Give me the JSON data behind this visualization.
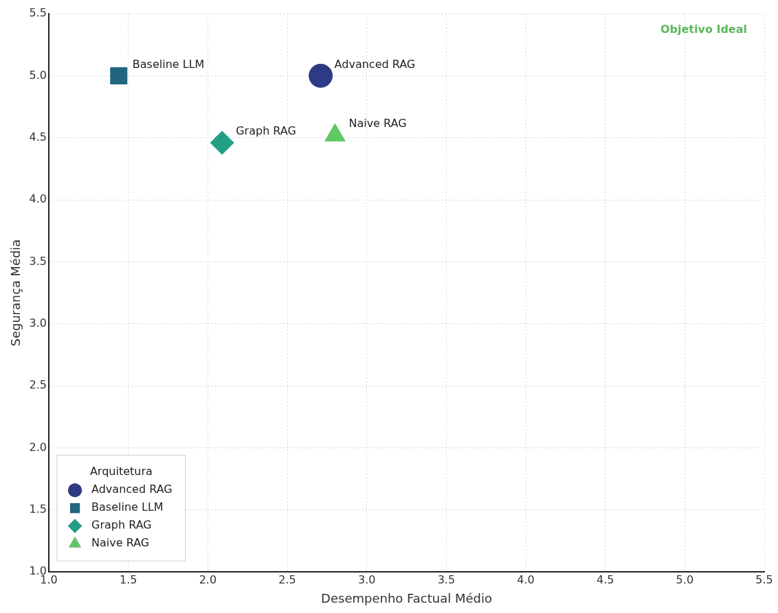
{
  "chart_data": {
    "type": "scatter",
    "xlabel": "Desempenho Factual Médio",
    "ylabel": "Segurança Média",
    "legend_title": "Arquitetura",
    "legend": "bottom left",
    "grid": true,
    "line_style": "dotted",
    "xlim": [
      1.0,
      5.5
    ],
    "ylim": [
      1.0,
      5.5
    ],
    "xticks": [
      {
        "value": 1,
        "label": "1.0"
      },
      {
        "value": 1.5,
        "label": "1.5"
      },
      {
        "value": 2,
        "label": "2.0"
      },
      {
        "value": 2.5,
        "label": "2.5"
      },
      {
        "value": 3,
        "label": "3.0"
      },
      {
        "value": 3.5,
        "label": "3.5"
      },
      {
        "value": 4,
        "label": "4.0"
      },
      {
        "value": 4.5,
        "label": "4.5"
      },
      {
        "value": 5,
        "label": "5.0"
      },
      {
        "value": 5.5,
        "label": "5.5"
      }
    ],
    "yticks": [
      {
        "value": 1,
        "label": "1.0"
      },
      {
        "value": 1.5,
        "label": "1.5"
      },
      {
        "value": 2,
        "label": "2.0"
      },
      {
        "value": 2.5,
        "label": "2.5"
      },
      {
        "value": 3,
        "label": "3.0"
      },
      {
        "value": 3.5,
        "label": "3.5"
      },
      {
        "value": 4,
        "label": "4.0"
      },
      {
        "value": 4.5,
        "label": "4.5"
      },
      {
        "value": 5,
        "label": "5.0"
      },
      {
        "value": 5.5,
        "label": "5.5"
      }
    ],
    "annotations": [
      "Objetivo Ideal"
    ],
    "series": [
      {
        "name": "Advanced RAG",
        "color": "#2f3a84",
        "marker": "circle",
        "x": [
          2.71
        ],
        "values": [
          5.0
        ]
      },
      {
        "name": "Baseline LLM",
        "color": "#22657f",
        "marker": "square",
        "x": [
          1.44
        ],
        "values": [
          5.0
        ]
      },
      {
        "name": "Graph RAG",
        "color": "#22a085",
        "marker": "diamond",
        "x": [
          2.09
        ],
        "values": [
          4.46
        ]
      },
      {
        "name": "Naive RAG",
        "color": "#5ec962",
        "marker": "triangle",
        "x": [
          2.8
        ],
        "values": [
          4.52
        ]
      }
    ]
  }
}
